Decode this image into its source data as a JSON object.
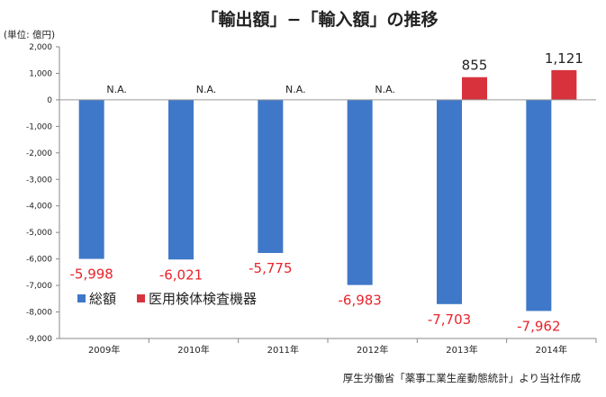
{
  "chart_data": {
    "type": "bar",
    "title": "「輸出額」−「輸入額」の推移",
    "unit_label": "(単位: 億円)",
    "categories": [
      "2009年",
      "2010年",
      "2011年",
      "2012年",
      "2013年",
      "2014年"
    ],
    "series": [
      {
        "name": "総額",
        "color": "#3f78c8",
        "values": [
          -5998,
          -6021,
          -5775,
          -6983,
          -7703,
          -7962
        ],
        "labels": [
          "-5,998",
          "-6,021",
          "-5,775",
          "-6,983",
          "-7,703",
          "-7,962"
        ]
      },
      {
        "name": "医用検体検査機器",
        "color": "#d8333d",
        "values": [
          null,
          null,
          null,
          null,
          855,
          1121
        ],
        "labels": [
          "N.A.",
          "N.A.",
          "N.A.",
          "N.A.",
          "855",
          "1,121"
        ]
      }
    ],
    "ylim": [
      -9000,
      2000
    ],
    "yticks": [
      2000,
      1000,
      0,
      -1000,
      -2000,
      -3000,
      -4000,
      -5000,
      -6000,
      -7000,
      -8000,
      -9000
    ],
    "ytick_labels": [
      "2,000",
      "1,000",
      "0",
      "-1,000",
      "-2,000",
      "-3,000",
      "-4,000",
      "-5,000",
      "-6,000",
      "-7,000",
      "-8,000",
      "-9,000"
    ],
    "grid": false,
    "legend_position": "bottom-left"
  },
  "source_note": "厚生労働省「薬事工業生産動態統計」より当社作成"
}
